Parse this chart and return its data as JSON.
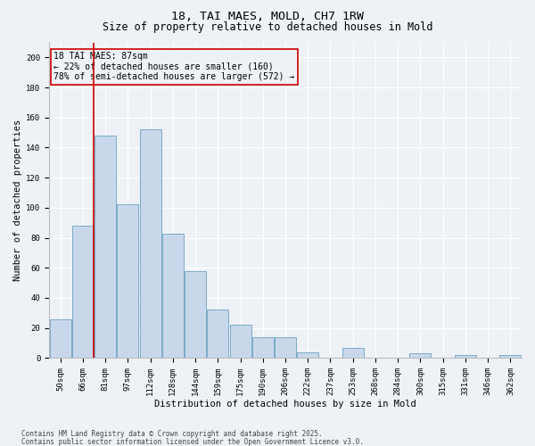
{
  "title_line1": "18, TAI MAES, MOLD, CH7 1RW",
  "title_line2": "Size of property relative to detached houses in Mold",
  "xlabel": "Distribution of detached houses by size in Mold",
  "ylabel": "Number of detached properties",
  "categories": [
    "50sqm",
    "66sqm",
    "81sqm",
    "97sqm",
    "112sqm",
    "128sqm",
    "144sqm",
    "159sqm",
    "175sqm",
    "190sqm",
    "206sqm",
    "222sqm",
    "237sqm",
    "253sqm",
    "268sqm",
    "284sqm",
    "300sqm",
    "315sqm",
    "331sqm",
    "346sqm",
    "362sqm"
  ],
  "values": [
    26,
    88,
    148,
    102,
    152,
    83,
    58,
    32,
    22,
    14,
    14,
    4,
    0,
    7,
    0,
    0,
    3,
    0,
    2,
    0,
    2
  ],
  "bar_color": "#c8d8ea",
  "bar_edge_color": "#7aaac8",
  "vline_color": "#cc0000",
  "annotation_title": "18 TAI MAES: 87sqm",
  "annotation_line1": "← 22% of detached houses are smaller (160)",
  "annotation_line2": "78% of semi-detached houses are larger (572) →",
  "annotation_box_color": "#cc0000",
  "footer_line1": "Contains HM Land Registry data © Crown copyright and database right 2025.",
  "footer_line2": "Contains public sector information licensed under the Open Government Licence v3.0.",
  "ylim": [
    0,
    210
  ],
  "yticks": [
    0,
    20,
    40,
    60,
    80,
    100,
    120,
    140,
    160,
    180,
    200
  ],
  "bg_color": "#eef2f7",
  "grid_color": "#ffffff",
  "title_fontsize": 9.5,
  "subtitle_fontsize": 8.5,
  "axis_label_fontsize": 7.5,
  "tick_fontsize": 6.5,
  "annotation_fontsize": 7.0,
  "footer_fontsize": 5.5
}
